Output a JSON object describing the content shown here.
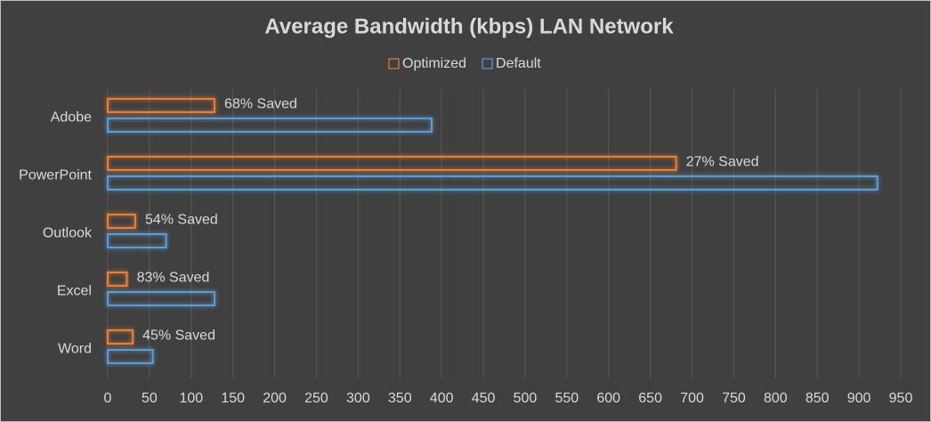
{
  "chart_data": {
    "type": "bar",
    "orientation": "horizontal",
    "title": "Average Bandwidth (kbps) LAN Network",
    "categories": [
      "Adobe",
      "PowerPoint",
      "Outlook",
      "Excel",
      "Word"
    ],
    "series": [
      {
        "name": "Optimized",
        "color": "#ed7d31",
        "values": [
          128,
          681,
          33,
          23,
          30
        ]
      },
      {
        "name": "Default",
        "color": "#5b9bd5",
        "values": [
          388,
          922,
          70,
          128,
          54
        ]
      }
    ],
    "annotations": [
      "68% Saved",
      "27% Saved",
      "54% Saved",
      "83% Saved",
      "45% Saved"
    ],
    "xlim": [
      0,
      950
    ],
    "xticks": [
      0,
      50,
      100,
      150,
      200,
      250,
      300,
      350,
      400,
      450,
      500,
      550,
      600,
      650,
      700,
      750,
      800,
      850,
      900,
      950
    ],
    "grid": true,
    "legend": "top"
  }
}
